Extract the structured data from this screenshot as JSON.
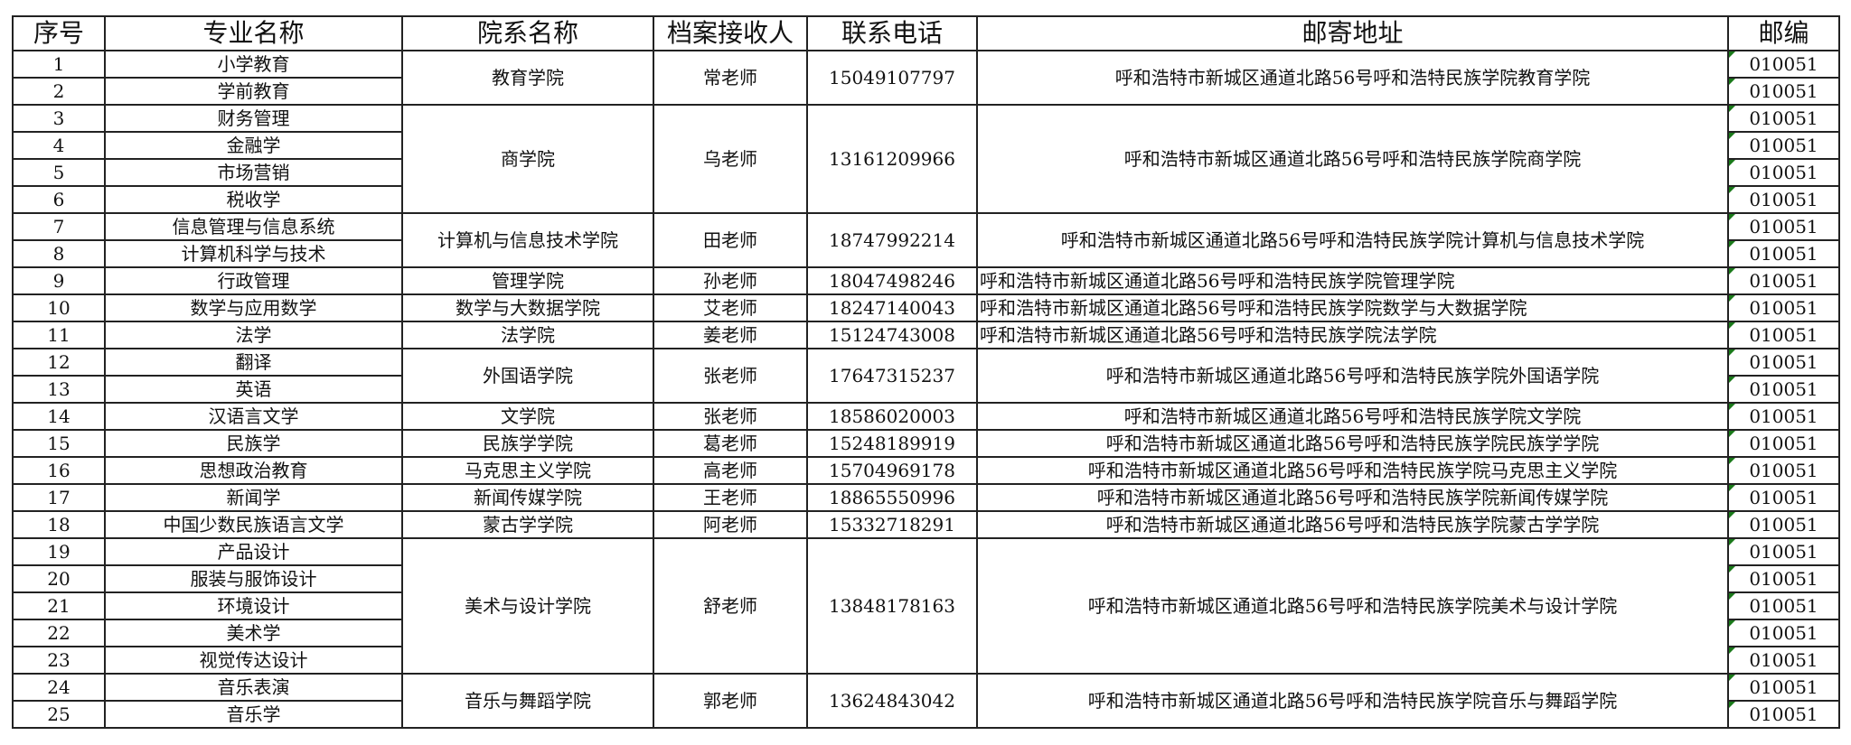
{
  "headers": [
    "序号",
    "专业名称",
    "院系名称",
    "档案接收人",
    "联系电话",
    "邮寄地址",
    "邮编"
  ],
  "rows": [
    {
      "seq": "1",
      "major": "小学教育",
      "zip": "010051"
    },
    {
      "seq": "2",
      "major": "学前教育",
      "zip": "010051"
    },
    {
      "seq": "3",
      "major": "财务管理",
      "zip": "010051"
    },
    {
      "seq": "4",
      "major": "金融学",
      "zip": "010051"
    },
    {
      "seq": "5",
      "major": "市场营销",
      "zip": "010051"
    },
    {
      "seq": "6",
      "major": "税收学",
      "zip": "010051"
    },
    {
      "seq": "7",
      "major": "信息管理与信息系统",
      "zip": "010051"
    },
    {
      "seq": "8",
      "major": "计算机科学与技术",
      "zip": "010051"
    },
    {
      "seq": "9",
      "major": "行政管理",
      "zip": "010051"
    },
    {
      "seq": "10",
      "major": "数学与应用数学",
      "zip": "010051"
    },
    {
      "seq": "11",
      "major": "法学",
      "zip": "010051"
    },
    {
      "seq": "12",
      "major": "翻译",
      "zip": "010051"
    },
    {
      "seq": "13",
      "major": "英语",
      "zip": "010051"
    },
    {
      "seq": "14",
      "major": "汉语言文学",
      "zip": "010051"
    },
    {
      "seq": "15",
      "major": "民族学",
      "zip": "010051"
    },
    {
      "seq": "16",
      "major": "思想政治教育",
      "zip": "010051"
    },
    {
      "seq": "17",
      "major": "新闻学",
      "zip": "010051"
    },
    {
      "seq": "18",
      "major": "中国少数民族语言文学",
      "zip": "010051"
    },
    {
      "seq": "19",
      "major": "产品设计",
      "zip": "010051"
    },
    {
      "seq": "20",
      "major": "服装与服饰设计",
      "zip": "010051"
    },
    {
      "seq": "21",
      "major": "环境设计",
      "zip": "010051"
    },
    {
      "seq": "22",
      "major": "美术学",
      "zip": "010051"
    },
    {
      "seq": "23",
      "major": "视觉传达设计",
      "zip": "010051"
    },
    {
      "seq": "24",
      "major": "音乐表演",
      "zip": "010051"
    },
    {
      "seq": "25",
      "major": "音乐学",
      "zip": "010051"
    }
  ],
  "groups": [
    {
      "span": 2,
      "college": "教育学院",
      "contact": "常老师",
      "phone": "15049107797",
      "address": "呼和浩特市新城区通道北路56号呼和浩特民族学院教育学院",
      "align": "center"
    },
    {
      "span": 4,
      "college": "商学院",
      "contact": "乌老师",
      "phone": "13161209966",
      "address": "呼和浩特市新城区通道北路56号呼和浩特民族学院商学院",
      "align": "center"
    },
    {
      "span": 2,
      "college": "计算机与信息技术学院",
      "contact": "田老师",
      "phone": "18747992214",
      "address": "呼和浩特市新城区通道北路56号呼和浩特民族学院计算机与信息技术学院",
      "align": "center"
    },
    {
      "span": 1,
      "college": "管理学院",
      "contact": "孙老师",
      "phone": "18047498246",
      "address": "呼和浩特市新城区通道北路56号呼和浩特民族学院管理学院",
      "align": "left"
    },
    {
      "span": 1,
      "college": "数学与大数据学院",
      "contact": "艾老师",
      "phone": "18247140043",
      "address": "呼和浩特市新城区通道北路56号呼和浩特民族学院数学与大数据学院",
      "align": "left"
    },
    {
      "span": 1,
      "college": "法学院",
      "contact": "姜老师",
      "phone": "15124743008",
      "address": "呼和浩特市新城区通道北路56号呼和浩特民族学院法学院",
      "align": "left"
    },
    {
      "span": 2,
      "college": "外国语学院",
      "contact": "张老师",
      "phone": "17647315237",
      "address": "呼和浩特市新城区通道北路56号呼和浩特民族学院外国语学院",
      "align": "center"
    },
    {
      "span": 1,
      "college": "文学院",
      "contact": "张老师",
      "phone": "18586020003",
      "address": "呼和浩特市新城区通道北路56号呼和浩特民族学院文学院",
      "align": "center"
    },
    {
      "span": 1,
      "college": "民族学学院",
      "contact": "葛老师",
      "phone": "15248189919",
      "address": "呼和浩特市新城区通道北路56号呼和浩特民族学院民族学学院",
      "align": "center"
    },
    {
      "span": 1,
      "college": "马克思主义学院",
      "contact": "高老师",
      "phone": "15704969178",
      "address": "呼和浩特市新城区通道北路56号呼和浩特民族学院马克思主义学院",
      "align": "center"
    },
    {
      "span": 1,
      "college": "新闻传媒学院",
      "contact": "王老师",
      "phone": "18865550996",
      "address": "呼和浩特市新城区通道北路56号呼和浩特民族学院新闻传媒学院",
      "align": "center"
    },
    {
      "span": 1,
      "college": "蒙古学学院",
      "contact": "阿老师",
      "phone": "15332718291",
      "address": "呼和浩特市新城区通道北路56号呼和浩特民族学院蒙古学学院",
      "align": "center"
    },
    {
      "span": 5,
      "college": "美术与设计学院",
      "contact": "舒老师",
      "phone": "13848178163",
      "address": "呼和浩特市新城区通道北路56号呼和浩特民族学院美术与设计学院",
      "align": "center"
    },
    {
      "span": 2,
      "college": "音乐与舞蹈学院",
      "contact": "郭老师",
      "phone": "13624843042",
      "address": "呼和浩特市新城区通道北路56号呼和浩特民族学院音乐与舞蹈学院",
      "align": "center"
    }
  ],
  "colors": {
    "border": "#222222",
    "comment_marker": "#1a7a1a"
  }
}
